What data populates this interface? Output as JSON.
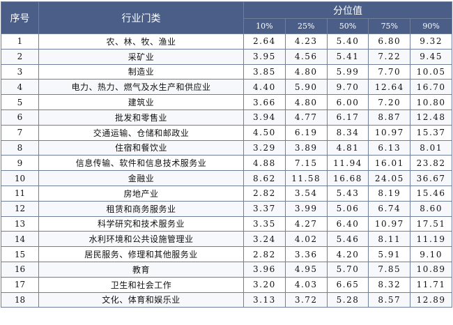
{
  "header": {
    "seq": "序号",
    "industry": "行业门类",
    "percentile_group": "分位值",
    "percentiles": [
      "10%",
      "25%",
      "50%",
      "75%",
      "90%"
    ]
  },
  "rows": [
    {
      "seq": "1",
      "industry": "农、林、牧、渔业",
      "values": [
        "2.64",
        "4.23",
        "5.40",
        "6.80",
        "9.32"
      ]
    },
    {
      "seq": "2",
      "industry": "采矿业",
      "values": [
        "3.95",
        "4.56",
        "5.41",
        "7.22",
        "9.45"
      ]
    },
    {
      "seq": "3",
      "industry": "制造业",
      "values": [
        "3.85",
        "4.80",
        "5.99",
        "7.70",
        "10.05"
      ]
    },
    {
      "seq": "4",
      "industry": "电力、热力、燃气及水生产和供应业",
      "values": [
        "4.40",
        "5.90",
        "9.70",
        "12.64",
        "16.70"
      ]
    },
    {
      "seq": "5",
      "industry": "建筑业",
      "values": [
        "3.66",
        "4.80",
        "6.00",
        "7.20",
        "10.80"
      ]
    },
    {
      "seq": "6",
      "industry": "批发和零售业",
      "values": [
        "3.94",
        "4.77",
        "6.17",
        "8.87",
        "12.48"
      ]
    },
    {
      "seq": "7",
      "industry": "交通运输、仓储和邮政业",
      "values": [
        "4.50",
        "6.19",
        "8.34",
        "10.97",
        "15.37"
      ]
    },
    {
      "seq": "8",
      "industry": "住宿和餐饮业",
      "values": [
        "3.29",
        "3.89",
        "4.81",
        "6.13",
        "8.01"
      ]
    },
    {
      "seq": "9",
      "industry": "信息传输、软件和信息技术服务业",
      "values": [
        "4.88",
        "7.15",
        "11.94",
        "16.01",
        "23.82"
      ]
    },
    {
      "seq": "10",
      "industry": "金融业",
      "values": [
        "8.62",
        "11.58",
        "16.68",
        "24.05",
        "36.67"
      ]
    },
    {
      "seq": "11",
      "industry": "房地产业",
      "values": [
        "2.82",
        "3.54",
        "5.43",
        "8.19",
        "15.46"
      ]
    },
    {
      "seq": "12",
      "industry": "租赁和商务服务业",
      "values": [
        "3.37",
        "3.99",
        "5.06",
        "6.74",
        "8.60"
      ]
    },
    {
      "seq": "13",
      "industry": "科学研究和技术服务业",
      "values": [
        "3.35",
        "4.27",
        "6.40",
        "10.97",
        "17.51"
      ]
    },
    {
      "seq": "14",
      "industry": "水利环境和公共设施管理业",
      "values": [
        "3.24",
        "4.02",
        "5.46",
        "8.11",
        "11.19"
      ]
    },
    {
      "seq": "15",
      "industry": "居民服务、修理和其他服务业",
      "values": [
        "2.82",
        "3.36",
        "4.20",
        "5.91",
        "9.10"
      ]
    },
    {
      "seq": "16",
      "industry": "教育",
      "values": [
        "3.96",
        "4.95",
        "5.70",
        "7.85",
        "10.89"
      ]
    },
    {
      "seq": "17",
      "industry": "卫生和社会工作",
      "values": [
        "3.20",
        "4.03",
        "6.65",
        "8.32",
        "11.71"
      ]
    },
    {
      "seq": "18",
      "industry": "文化、体育和娱乐业",
      "values": [
        "3.13",
        "3.72",
        "5.28",
        "8.57",
        "12.89"
      ]
    }
  ]
}
